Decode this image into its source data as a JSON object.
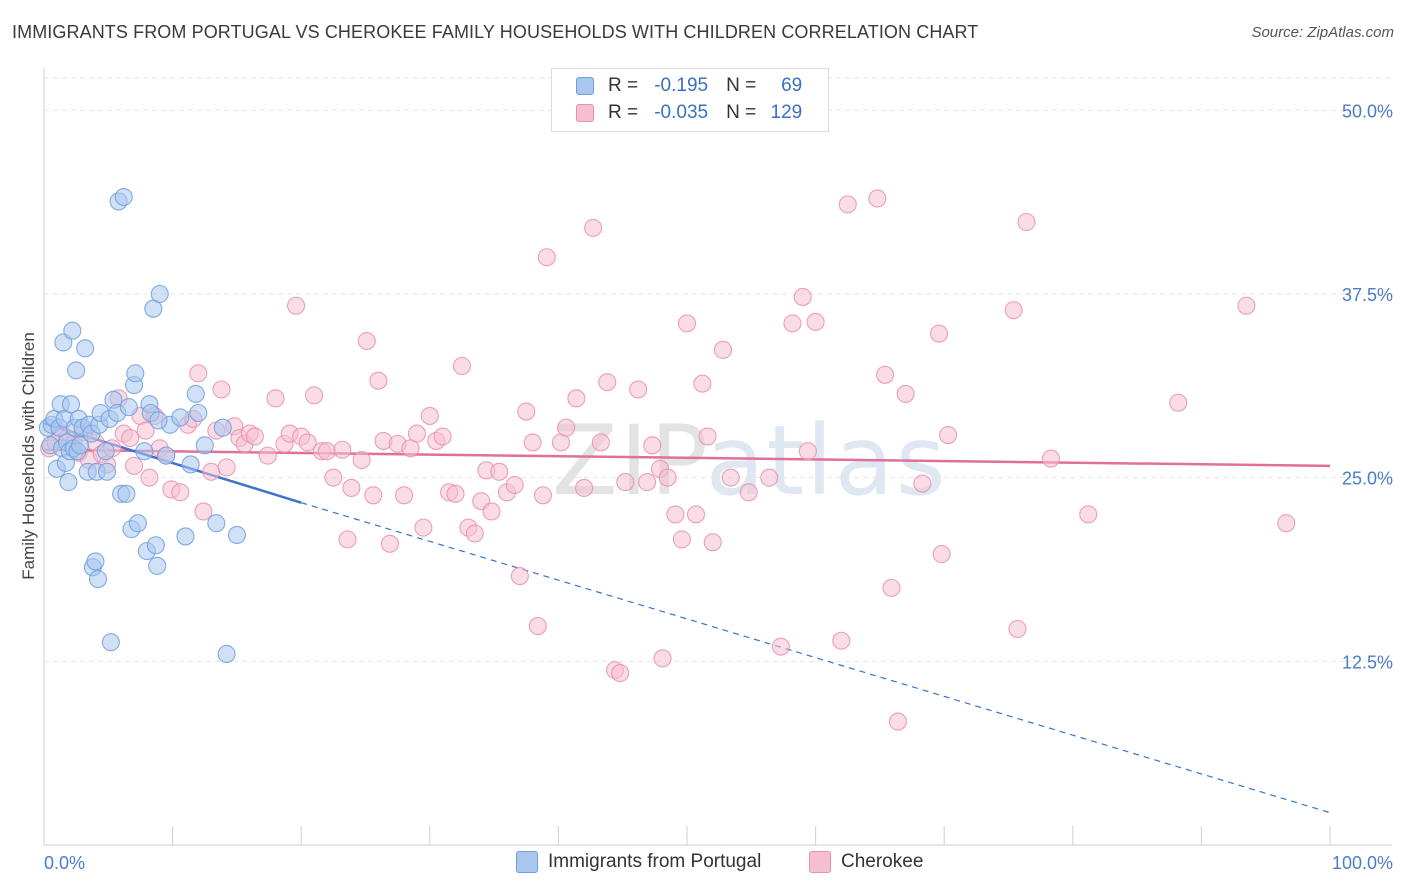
{
  "title": "IMMIGRANTS FROM PORTUGAL VS CHEROKEE FAMILY HOUSEHOLDS WITH CHILDREN CORRELATION CHART",
  "source": "Source: ZipAtlas.com",
  "watermark": {
    "zip": "ZIP",
    "atlas": "atlas"
  },
  "legend": {
    "r_label": "R =",
    "n_label": "N =",
    "rows": [
      {
        "r": "-0.195",
        "n": "69",
        "color": "#a9c6ee",
        "border": "#6f9fdc"
      },
      {
        "r": "-0.035",
        "n": "129",
        "color": "#f6bfd1",
        "border": "#e98fae"
      }
    ]
  },
  "series_names": [
    "Immigrants from Portugal",
    "Cherokee"
  ],
  "colors": {
    "blue_fill": "#a9c6ee",
    "blue_stroke": "#6f9fdc",
    "blue_line": "#3b73cf",
    "pink_fill": "#f6bfd1",
    "pink_stroke": "#e98fae",
    "pink_line": "#e16f98",
    "grid": "#e6e6e6",
    "axis_text": "#4a7cc9"
  },
  "chart_data": {
    "type": "scatter",
    "title": "IMMIGRANTS FROM PORTUGAL VS CHEROKEE FAMILY HOUSEHOLDS WITH CHILDREN CORRELATION CHART",
    "xlabel": "",
    "ylabel": "Family Households with Children",
    "xlim": [
      0,
      100
    ],
    "ylim": [
      0,
      50
    ],
    "x_tick_labels": [
      "0.0%",
      "100.0%"
    ],
    "y_ticks": [
      12.5,
      25.0,
      37.5,
      50.0
    ],
    "y_tick_labels": [
      "12.5%",
      "25.0%",
      "37.5%",
      "50.0%"
    ],
    "grid": true,
    "legend_position": "top-center",
    "series": [
      {
        "name": "Immigrants from Portugal",
        "r": -0.195,
        "n": 69,
        "trend": {
          "solid": [
            [
              0,
              28.7
            ],
            [
              20,
              23.3
            ]
          ],
          "dashed": [
            [
              20,
              23.3
            ],
            [
              100,
              2.2
            ]
          ]
        },
        "points": [
          [
            0.3,
            28.4
          ],
          [
            0.5,
            27.2
          ],
          [
            0.6,
            28.6
          ],
          [
            0.8,
            29.0
          ],
          [
            1.0,
            25.6
          ],
          [
            1.2,
            28.4
          ],
          [
            1.3,
            30.0
          ],
          [
            1.4,
            27.0
          ],
          [
            1.5,
            34.2
          ],
          [
            1.6,
            29.0
          ],
          [
            1.7,
            26.0
          ],
          [
            1.8,
            27.4
          ],
          [
            1.9,
            24.7
          ],
          [
            2.0,
            26.8
          ],
          [
            2.1,
            30.0
          ],
          [
            2.2,
            35.0
          ],
          [
            2.3,
            27.0
          ],
          [
            2.4,
            28.4
          ],
          [
            2.5,
            32.3
          ],
          [
            2.6,
            26.8
          ],
          [
            2.7,
            29.0
          ],
          [
            2.8,
            27.2
          ],
          [
            3.0,
            28.4
          ],
          [
            3.2,
            33.8
          ],
          [
            3.4,
            25.4
          ],
          [
            3.5,
            28.6
          ],
          [
            3.7,
            28.0
          ],
          [
            3.8,
            18.9
          ],
          [
            4.0,
            19.3
          ],
          [
            4.1,
            25.4
          ],
          [
            4.2,
            18.1
          ],
          [
            4.3,
            28.6
          ],
          [
            4.4,
            29.4
          ],
          [
            4.8,
            26.8
          ],
          [
            4.9,
            25.4
          ],
          [
            5.1,
            29.0
          ],
          [
            5.2,
            13.8
          ],
          [
            5.4,
            30.3
          ],
          [
            5.7,
            29.4
          ],
          [
            5.8,
            43.8
          ],
          [
            6.0,
            23.9
          ],
          [
            6.2,
            44.1
          ],
          [
            6.4,
            23.9
          ],
          [
            6.6,
            29.8
          ],
          [
            6.8,
            21.5
          ],
          [
            7.0,
            31.3
          ],
          [
            7.1,
            32.1
          ],
          [
            7.3,
            21.9
          ],
          [
            7.8,
            26.8
          ],
          [
            8.0,
            20.0
          ],
          [
            8.2,
            30.0
          ],
          [
            8.3,
            29.4
          ],
          [
            8.5,
            36.5
          ],
          [
            8.7,
            20.4
          ],
          [
            8.8,
            19.0
          ],
          [
            9.0,
            37.5
          ],
          [
            9.5,
            26.5
          ],
          [
            9.8,
            28.6
          ],
          [
            10.6,
            29.1
          ],
          [
            11.0,
            21.0
          ],
          [
            11.4,
            25.9
          ],
          [
            11.8,
            30.7
          ],
          [
            12.0,
            29.4
          ],
          [
            12.5,
            27.2
          ],
          [
            13.4,
            21.9
          ],
          [
            13.9,
            28.4
          ],
          [
            14.2,
            13.0
          ],
          [
            15.0,
            21.1
          ],
          [
            8.9,
            28.9
          ]
        ]
      },
      {
        "name": "Cherokee",
        "r": -0.035,
        "n": 129,
        "trend": {
          "solid": [
            [
              0,
              26.9
            ],
            [
              100,
              25.8
            ]
          ]
        },
        "points": [
          [
            0.4,
            27.0
          ],
          [
            0.9,
            27.4
          ],
          [
            1.3,
            28.0
          ],
          [
            1.8,
            27.7
          ],
          [
            2.3,
            27.3
          ],
          [
            2.7,
            26.7
          ],
          [
            3.1,
            28.1
          ],
          [
            3.5,
            26.2
          ],
          [
            4.0,
            27.4
          ],
          [
            4.5,
            26.6
          ],
          [
            4.9,
            25.9
          ],
          [
            5.3,
            27.0
          ],
          [
            5.8,
            30.4
          ],
          [
            6.2,
            28.0
          ],
          [
            6.7,
            27.7
          ],
          [
            7.0,
            25.8
          ],
          [
            7.5,
            29.2
          ],
          [
            7.9,
            28.2
          ],
          [
            8.2,
            25.0
          ],
          [
            8.6,
            29.2
          ],
          [
            9.0,
            27.0
          ],
          [
            9.5,
            26.5
          ],
          [
            9.9,
            24.2
          ],
          [
            10.6,
            24.0
          ],
          [
            11.2,
            28.6
          ],
          [
            11.6,
            29.0
          ],
          [
            12.0,
            32.1
          ],
          [
            12.4,
            22.7
          ],
          [
            13.0,
            25.4
          ],
          [
            13.4,
            28.2
          ],
          [
            13.8,
            31.0
          ],
          [
            14.2,
            25.7
          ],
          [
            14.8,
            28.5
          ],
          [
            15.2,
            27.7
          ],
          [
            15.6,
            27.3
          ],
          [
            16.0,
            28.0
          ],
          [
            16.4,
            27.8
          ],
          [
            17.4,
            26.5
          ],
          [
            18.0,
            30.4
          ],
          [
            18.7,
            27.3
          ],
          [
            19.1,
            28.0
          ],
          [
            19.6,
            36.7
          ],
          [
            20.0,
            27.8
          ],
          [
            20.5,
            27.4
          ],
          [
            21.0,
            30.6
          ],
          [
            21.6,
            26.8
          ],
          [
            22.0,
            26.8
          ],
          [
            22.5,
            25.0
          ],
          [
            23.2,
            26.9
          ],
          [
            23.6,
            20.8
          ],
          [
            23.9,
            24.3
          ],
          [
            24.7,
            26.2
          ],
          [
            25.1,
            34.3
          ],
          [
            25.6,
            23.8
          ],
          [
            26.0,
            31.6
          ],
          [
            26.4,
            27.5
          ],
          [
            26.9,
            20.5
          ],
          [
            27.5,
            27.3
          ],
          [
            28.0,
            23.8
          ],
          [
            28.5,
            27.0
          ],
          [
            29.0,
            28.0
          ],
          [
            29.5,
            21.6
          ],
          [
            30.0,
            29.2
          ],
          [
            30.5,
            27.5
          ],
          [
            31.0,
            27.8
          ],
          [
            31.5,
            24.0
          ],
          [
            32.0,
            23.9
          ],
          [
            32.5,
            32.6
          ],
          [
            33.0,
            21.6
          ],
          [
            33.5,
            21.2
          ],
          [
            34.0,
            23.4
          ],
          [
            34.4,
            25.5
          ],
          [
            34.8,
            22.7
          ],
          [
            35.4,
            25.4
          ],
          [
            36.0,
            24.0
          ],
          [
            36.6,
            24.5
          ],
          [
            37.0,
            18.3
          ],
          [
            37.5,
            29.5
          ],
          [
            38.0,
            27.4
          ],
          [
            38.4,
            14.9
          ],
          [
            38.8,
            23.8
          ],
          [
            39.1,
            40.0
          ],
          [
            40.2,
            27.4
          ],
          [
            40.6,
            28.4
          ],
          [
            41.4,
            30.4
          ],
          [
            42.0,
            24.3
          ],
          [
            42.7,
            42.0
          ],
          [
            43.3,
            27.4
          ],
          [
            43.8,
            31.5
          ],
          [
            44.4,
            11.9
          ],
          [
            44.8,
            11.7
          ],
          [
            45.2,
            24.7
          ],
          [
            46.2,
            31.0
          ],
          [
            46.9,
            24.7
          ],
          [
            47.3,
            27.2
          ],
          [
            47.9,
            25.6
          ],
          [
            48.1,
            12.7
          ],
          [
            48.5,
            25.0
          ],
          [
            49.1,
            22.5
          ],
          [
            49.6,
            20.8
          ],
          [
            50.0,
            35.5
          ],
          [
            50.7,
            22.5
          ],
          [
            51.2,
            31.4
          ],
          [
            51.6,
            27.8
          ],
          [
            52.0,
            20.6
          ],
          [
            52.8,
            33.7
          ],
          [
            53.4,
            25.0
          ],
          [
            54.8,
            24.0
          ],
          [
            56.4,
            25.0
          ],
          [
            57.3,
            13.5
          ],
          [
            58.2,
            35.5
          ],
          [
            59.0,
            37.3
          ],
          [
            59.4,
            26.8
          ],
          [
            60.0,
            35.6
          ],
          [
            62.0,
            13.9
          ],
          [
            62.5,
            43.6
          ],
          [
            64.8,
            44.0
          ],
          [
            65.4,
            32.0
          ],
          [
            65.9,
            17.5
          ],
          [
            66.4,
            8.4
          ],
          [
            67.0,
            30.7
          ],
          [
            68.3,
            24.6
          ],
          [
            69.6,
            34.8
          ],
          [
            69.8,
            19.8
          ],
          [
            70.3,
            27.9
          ],
          [
            75.4,
            36.4
          ],
          [
            75.7,
            14.7
          ],
          [
            76.4,
            42.4
          ],
          [
            78.3,
            26.3
          ],
          [
            81.2,
            22.5
          ],
          [
            88.2,
            30.1
          ],
          [
            93.5,
            36.7
          ],
          [
            96.6,
            21.9
          ]
        ]
      }
    ]
  }
}
